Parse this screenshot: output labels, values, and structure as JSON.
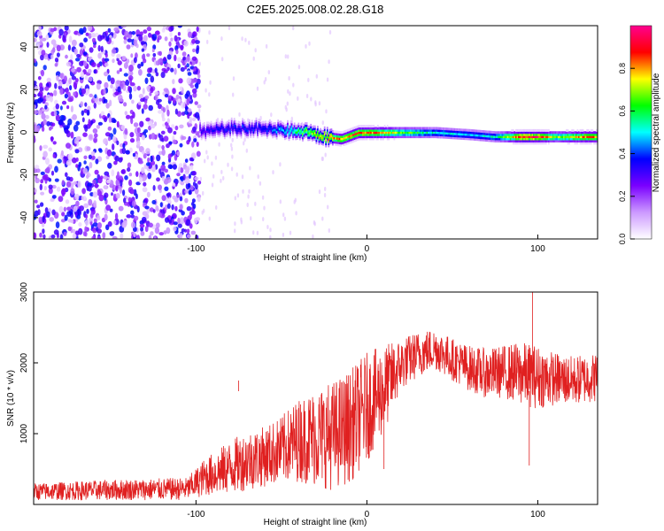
{
  "title": "C2E5.2025.008.02.28.G18",
  "colors": {
    "snr_line": "#e02020",
    "colorbar_stops": [
      "#ffffff",
      "#cc99ff",
      "#7a00ff",
      "#0000ff",
      "#00ffff",
      "#00ff00",
      "#ffff00",
      "#ff0000",
      "#ff0090"
    ]
  },
  "chart_data": [
    {
      "type": "heatmap",
      "name": "spectrogram",
      "xlabel": "Height of straight line (km)",
      "ylabel": "Frequency (Hz)",
      "xlim": [
        -195,
        135
      ],
      "ylim": [
        -50,
        50
      ],
      "x_ticks": [
        -100,
        0,
        100
      ],
      "y_ticks": [
        -40,
        -20,
        0,
        20,
        40
      ],
      "colorbar": {
        "label": "Normalized spectral amplitude",
        "range": [
          0,
          1
        ],
        "ticks": [
          "0.0",
          "0.2",
          "0.4",
          "0.6",
          "0.8"
        ]
      },
      "ridge": {
        "x": [
          -95,
          -80,
          -60,
          -45,
          -35,
          -25,
          -15,
          -5,
          5,
          20,
          40,
          60,
          75,
          90,
          100,
          110,
          125,
          135
        ],
        "frequency": [
          1,
          2,
          2,
          1,
          0,
          -2,
          -3,
          0,
          0,
          0,
          0,
          -1,
          -2,
          -2,
          -2,
          -2,
          -2,
          -2
        ],
        "amplitude": [
          0.35,
          0.4,
          0.4,
          0.55,
          0.7,
          0.8,
          0.85,
          0.9,
          0.85,
          0.7,
          0.55,
          0.5,
          0.55,
          0.95,
          0.95,
          0.7,
          0.85,
          0.85
        ]
      },
      "noise_region": {
        "x_from": -195,
        "x_to": -98,
        "amplitude": 0.15
      }
    },
    {
      "type": "line",
      "name": "snr",
      "xlabel": "Height of straight line (km)",
      "ylabel": "SNR (10 * v/v)",
      "xlim": [
        -195,
        135
      ],
      "ylim": [
        0,
        3000
      ],
      "x_ticks": [
        -100,
        0,
        100
      ],
      "y_ticks": [
        1000,
        2000,
        3000
      ],
      "envelope": {
        "x": [
          -195,
          -150,
          -105,
          -95,
          -80,
          -70,
          -60,
          -50,
          -40,
          -30,
          -20,
          -10,
          0,
          10,
          20,
          30,
          40,
          50,
          60,
          70,
          80,
          90,
          100,
          110,
          120,
          135
        ],
        "low": [
          60,
          60,
          60,
          120,
          150,
          200,
          250,
          300,
          320,
          250,
          200,
          300,
          600,
          1000,
          1600,
          1800,
          1900,
          1750,
          1600,
          1500,
          1500,
          1400,
          1350,
          1400,
          1400,
          1450
        ],
        "high": [
          300,
          350,
          380,
          650,
          900,
          1050,
          1100,
          1250,
          1500,
          1650,
          1750,
          1900,
          2150,
          2250,
          2350,
          2450,
          2500,
          2350,
          2250,
          2200,
          2250,
          2300,
          2250,
          2150,
          2100,
          2150
        ]
      },
      "spikes": [
        {
          "x": 97,
          "y": 3000
        },
        {
          "x": 95,
          "y": 550
        },
        {
          "x": -75,
          "y": 1750
        },
        {
          "x": 10,
          "y": 500
        }
      ]
    }
  ]
}
